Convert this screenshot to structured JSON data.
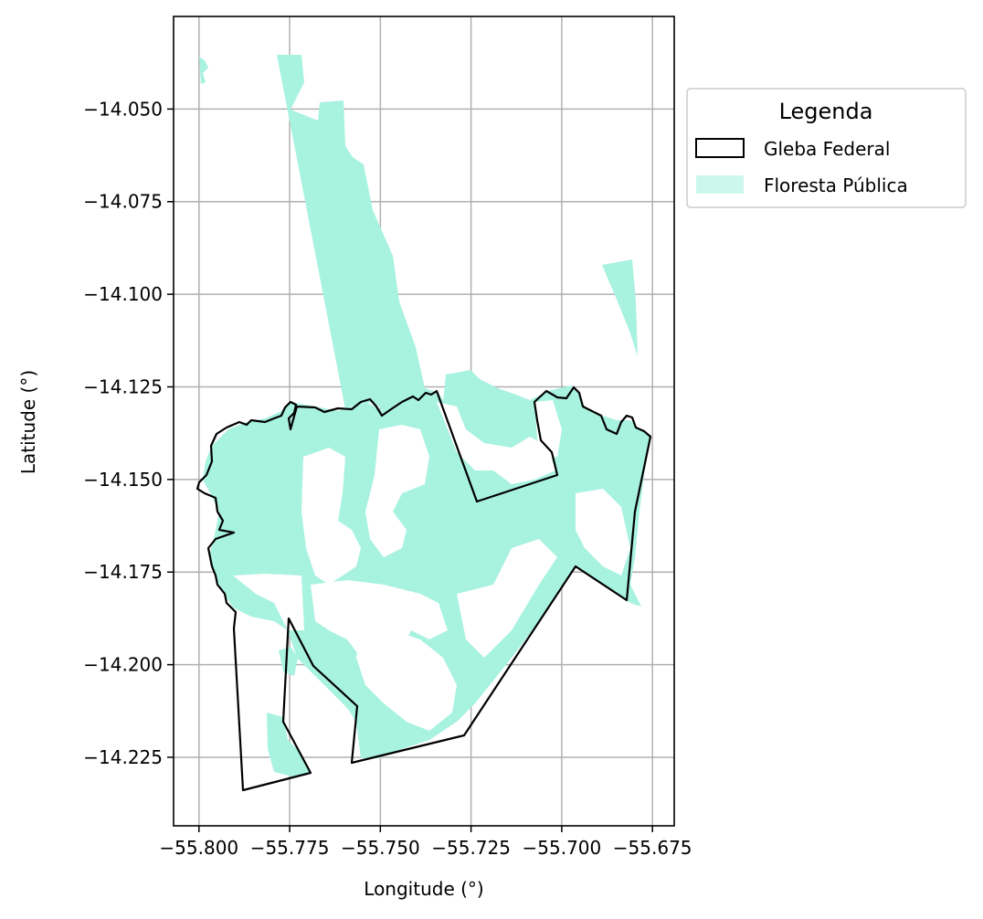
{
  "map": {
    "x_axis": {
      "label": "Longitude (°)",
      "ticks": [
        "−55.800",
        "−55.775",
        "−55.750",
        "−55.725",
        "−55.700",
        "−55.675"
      ],
      "values": [
        -55.8,
        -55.775,
        -55.75,
        -55.725,
        -55.7,
        -55.675
      ],
      "range": [
        -55.807,
        -55.669
      ]
    },
    "y_axis": {
      "label": "Latitude (°)",
      "ticks": [
        "−14.050",
        "−14.075",
        "−14.100",
        "−14.125",
        "−14.150",
        "−14.175",
        "−14.200",
        "−14.225"
      ],
      "values": [
        -14.05,
        -14.075,
        -14.1,
        -14.125,
        -14.15,
        -14.175,
        -14.2,
        -14.225
      ],
      "range": [
        -14.2435,
        -14.025
      ]
    },
    "grid": true,
    "legend": {
      "title": "Legenda",
      "placement": "outside-right-top",
      "items": [
        {
          "label": "Gleba Federal",
          "style": "outline",
          "color": "#000000"
        },
        {
          "label": "Floresta Pública",
          "style": "fill",
          "color": "#a8f2e0"
        }
      ]
    },
    "colors": {
      "forest": "#a8f2e0",
      "boundary": "#000000",
      "grid": "#b0b0b0"
    }
  }
}
